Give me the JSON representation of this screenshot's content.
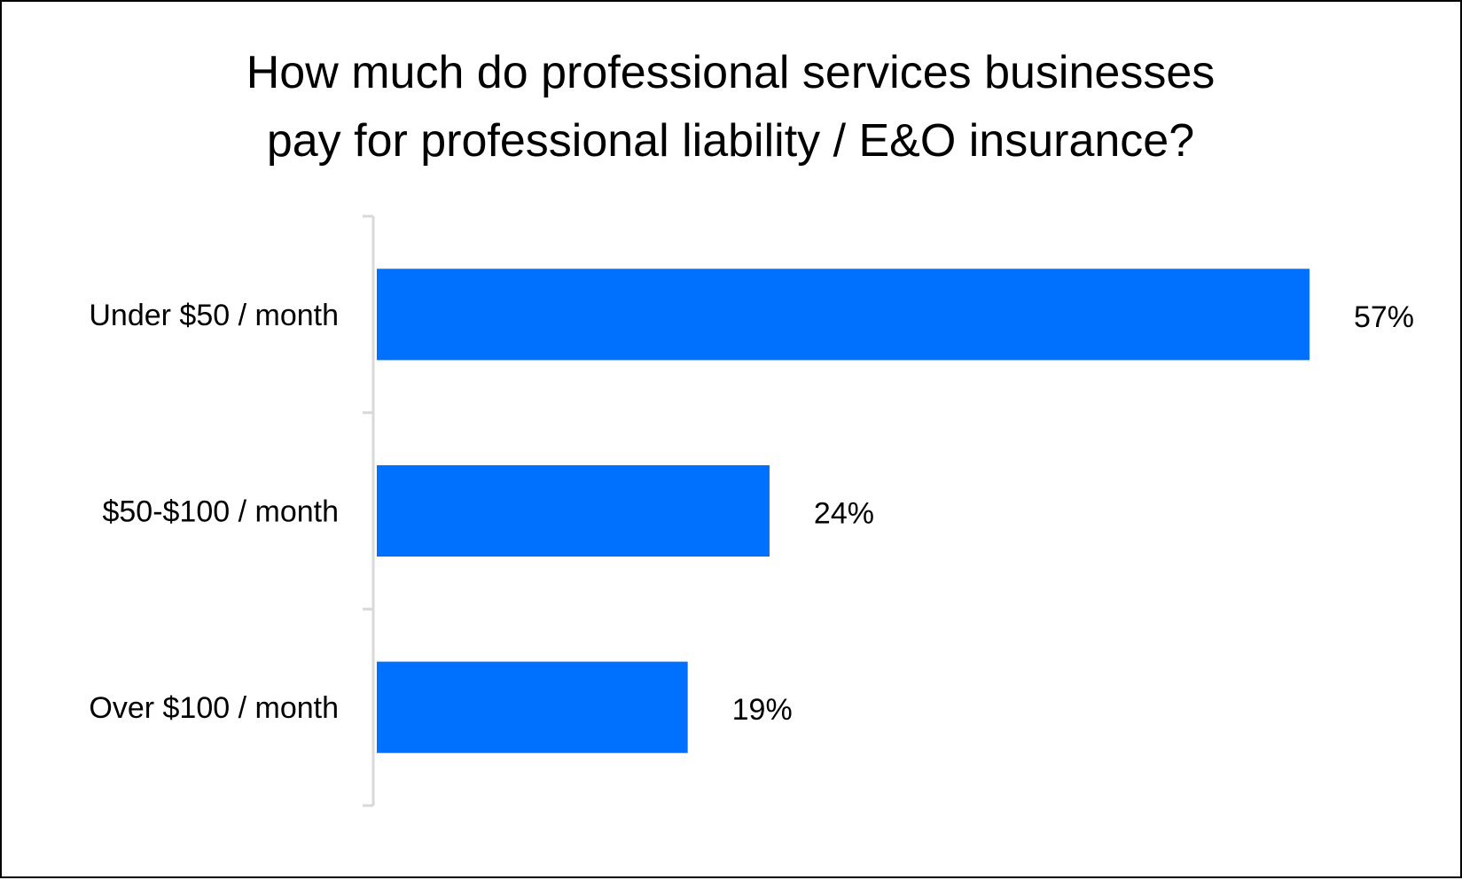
{
  "chart_data": {
    "type": "bar",
    "orientation": "horizontal",
    "title": [
      "How much do professional services businesses",
      "pay for professional liability / E&O insurance?"
    ],
    "categories": [
      "Under $50 / month",
      "$50-$100 / month",
      "Over $100 / month"
    ],
    "values": [
      57,
      24,
      19
    ],
    "data_labels": [
      "57%",
      "24%",
      "19%"
    ],
    "xlim": [
      0,
      57
    ],
    "grid": false,
    "legend": "none",
    "colors": {
      "bar": "#0070FF",
      "axis": "#D9D9D9"
    }
  }
}
